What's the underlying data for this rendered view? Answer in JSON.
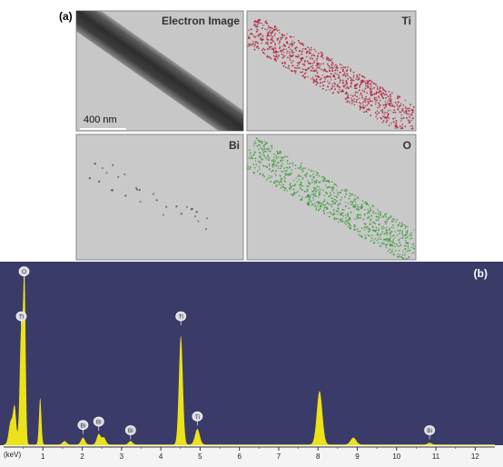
{
  "figure": {
    "panel_a": {
      "label": "(a)",
      "scale_bar": "400 nm",
      "maps": [
        {
          "label": "Electron Image",
          "kind": "electron"
        },
        {
          "label": "Ti",
          "kind": "ti",
          "dot_color": "#b0203a"
        },
        {
          "label": "Bi",
          "kind": "bi",
          "dot_color": "#555555"
        },
        {
          "label": "O",
          "kind": "o",
          "dot_color": "#3a9a3a"
        }
      ]
    },
    "panel_b": {
      "label": "(b)",
      "colors": {
        "background": "#3a3b68",
        "spectrum": "#ece21a",
        "axis": "#ffffff"
      }
    }
  },
  "chart_data": {
    "type": "area",
    "xlabel": "(keV)",
    "xlim": [
      0,
      12.5
    ],
    "x_ticks": [
      1,
      2,
      3,
      4,
      5,
      6,
      7,
      8,
      9,
      10,
      11,
      12
    ],
    "ylim": [
      0,
      100
    ],
    "peaks": [
      {
        "x": 0.18,
        "y": 13,
        "w": 0.05
      },
      {
        "x": 0.28,
        "y": 21,
        "w": 0.04
      },
      {
        "x": 0.45,
        "y": 68,
        "w": 0.04
      },
      {
        "x": 0.53,
        "y": 93,
        "w": 0.03
      },
      {
        "x": 0.93,
        "y": 27,
        "w": 0.03
      },
      {
        "x": 1.55,
        "y": 2,
        "w": 0.05
      },
      {
        "x": 2.02,
        "y": 4,
        "w": 0.05
      },
      {
        "x": 2.42,
        "y": 6,
        "w": 0.05
      },
      {
        "x": 2.55,
        "y": 4,
        "w": 0.05
      },
      {
        "x": 3.23,
        "y": 2,
        "w": 0.05
      },
      {
        "x": 4.51,
        "y": 63,
        "w": 0.05
      },
      {
        "x": 4.93,
        "y": 9,
        "w": 0.06
      },
      {
        "x": 8.04,
        "y": 31,
        "w": 0.07
      },
      {
        "x": 8.9,
        "y": 4,
        "w": 0.07
      },
      {
        "x": 10.84,
        "y": 1,
        "w": 0.05
      }
    ],
    "peak_labels": [
      {
        "text": "O",
        "x": 0.52,
        "y": 97
      },
      {
        "text": "Ti",
        "x": 0.45,
        "y": 71
      },
      {
        "text": "Bi",
        "x": 2.02,
        "y": 8
      },
      {
        "text": "Bi",
        "x": 2.42,
        "y": 10
      },
      {
        "text": "Bi",
        "x": 3.23,
        "y": 5
      },
      {
        "text": "Ti",
        "x": 4.51,
        "y": 71
      },
      {
        "text": "Ti",
        "x": 4.93,
        "y": 13
      },
      {
        "text": "Bi",
        "x": 10.84,
        "y": 5
      }
    ]
  }
}
